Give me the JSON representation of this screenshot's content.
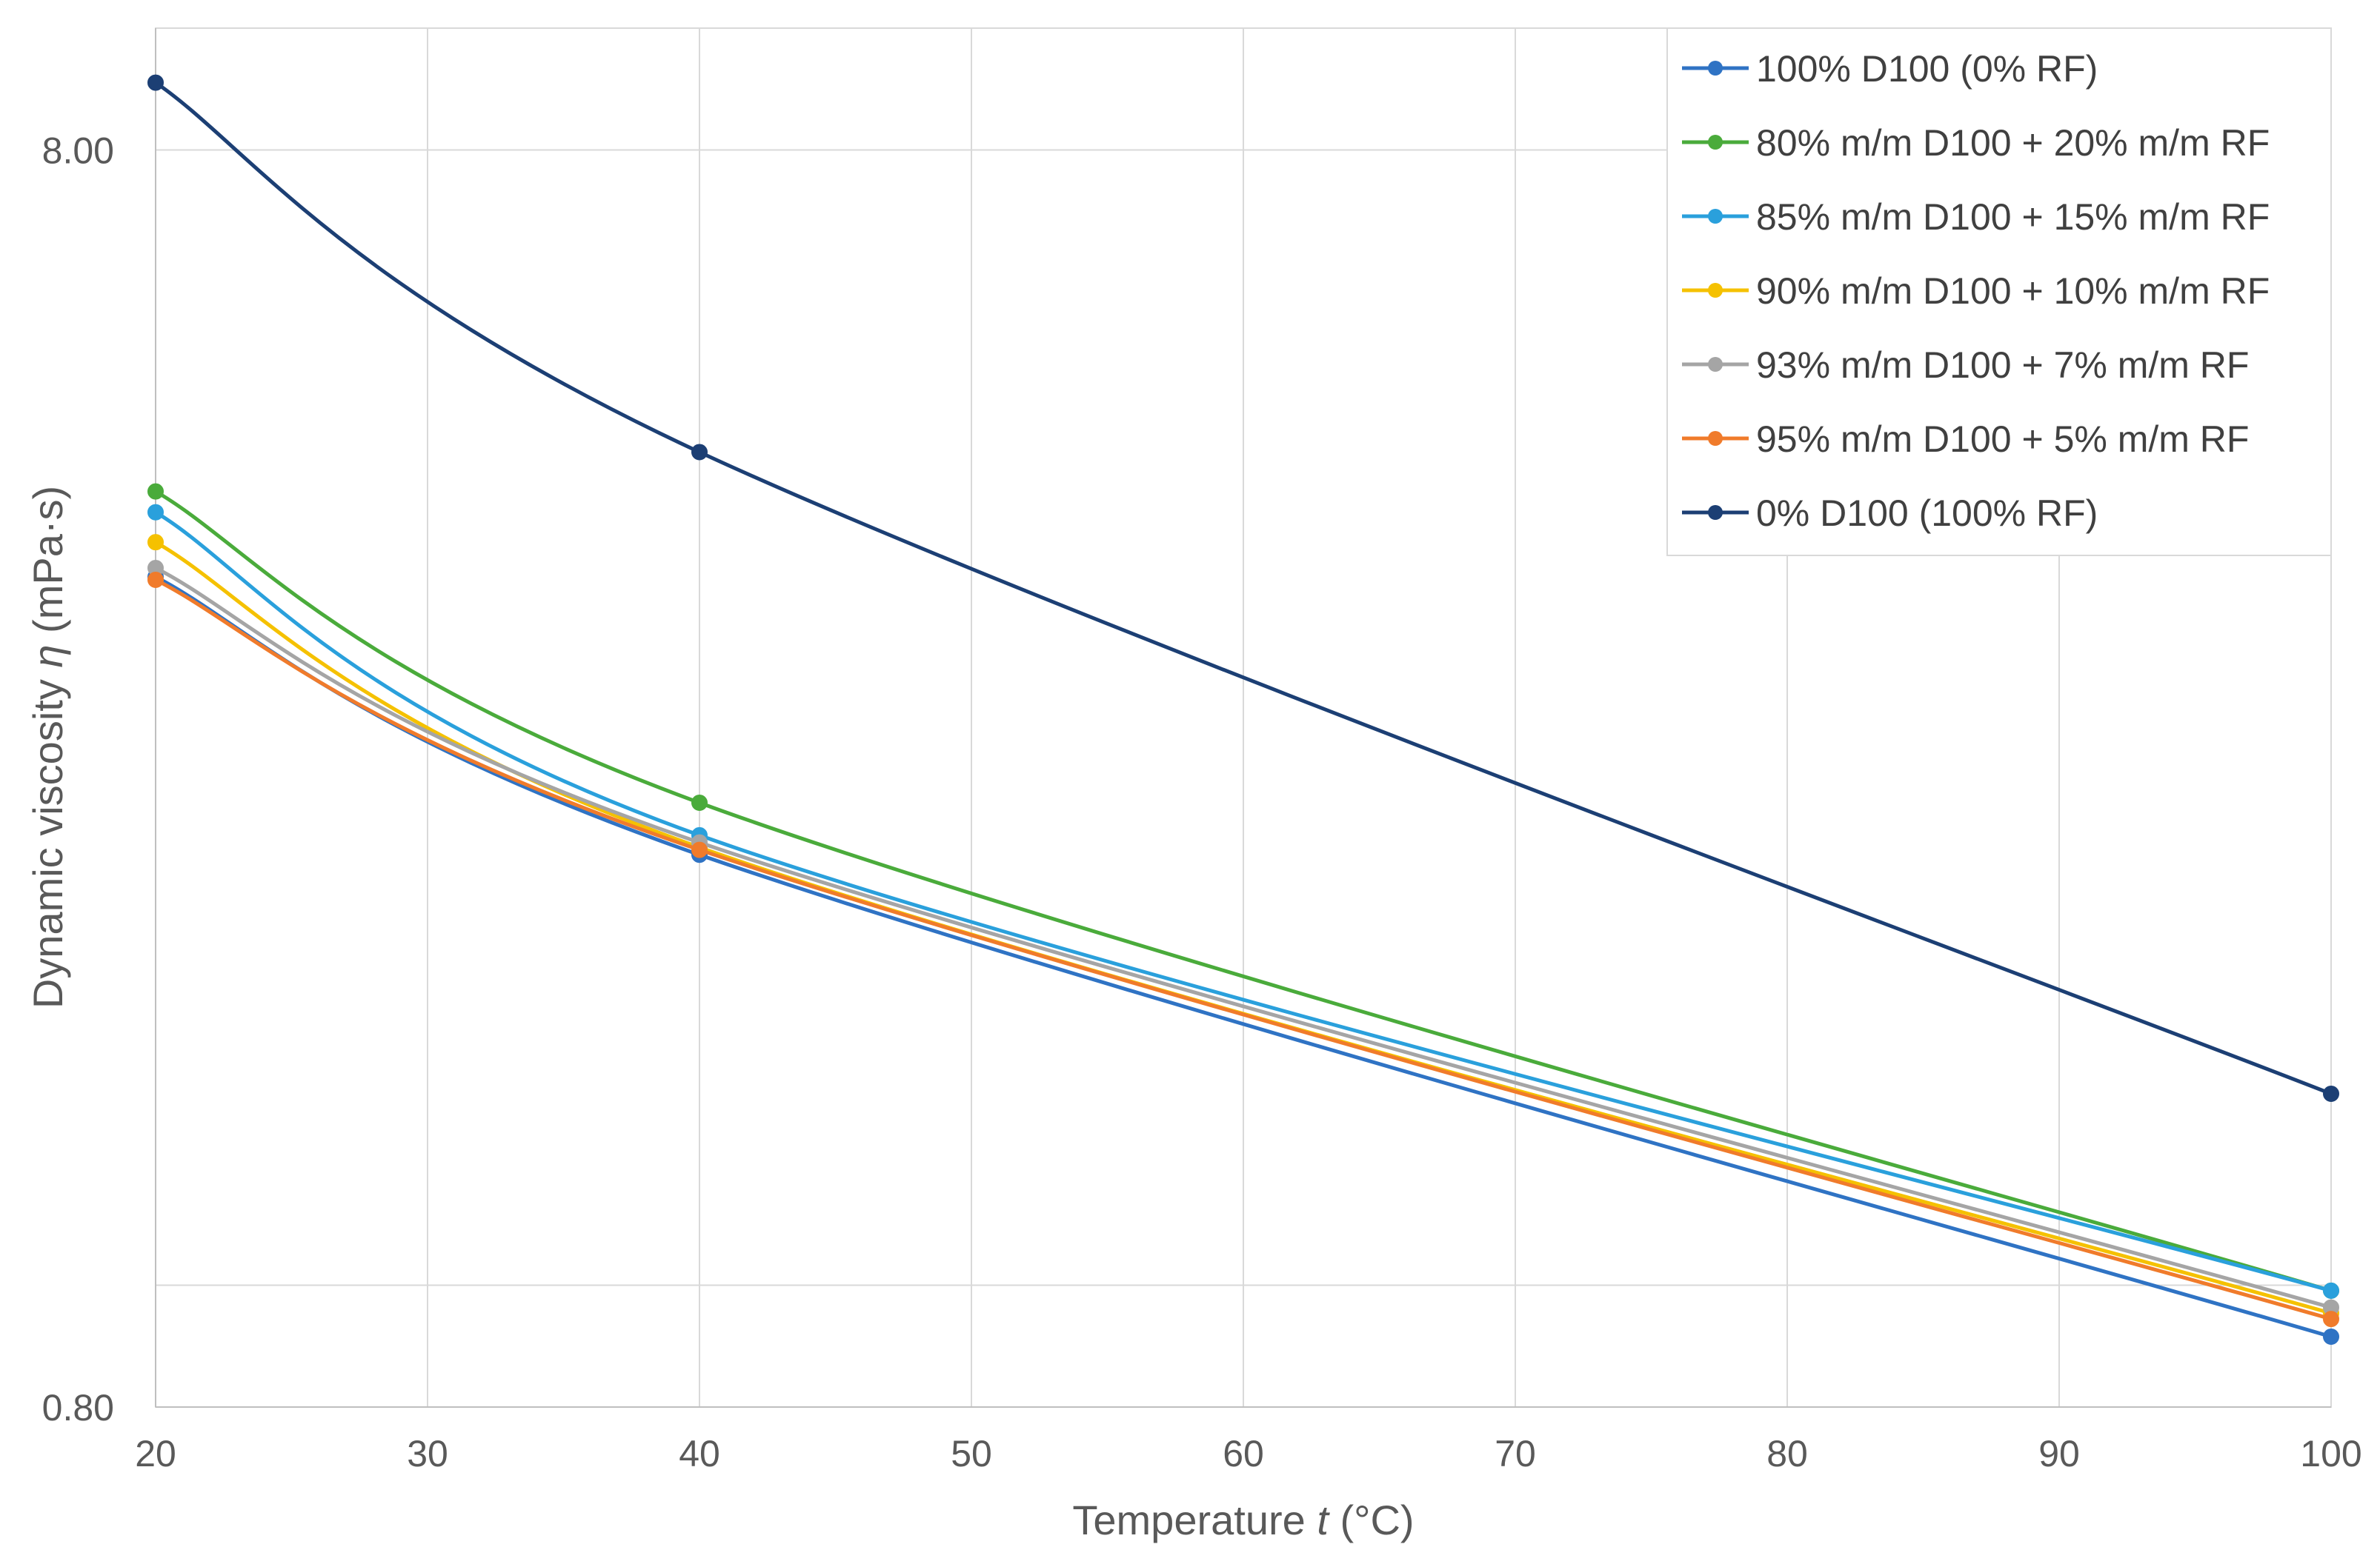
{
  "chart_data": {
    "type": "line",
    "title": "",
    "xlabel_text": "Temperature",
    "xlabel_var": "t",
    "xlabel_unit": "(°C)",
    "ylabel_text": "Dynamic viscosity",
    "ylabel_var": "η",
    "ylabel_unit": "(mPa·s)",
    "yscale": "log",
    "xlim": [
      20,
      100
    ],
    "ylim": [
      0.8,
      10
    ],
    "x_ticks": [
      20,
      30,
      40,
      50,
      60,
      70,
      80,
      90,
      100
    ],
    "x_tick_labels": [
      "20",
      "30",
      "40",
      "50",
      "60",
      "70",
      "80",
      "90",
      "100"
    ],
    "y_ticks": [
      0.8,
      8.0
    ],
    "y_tick_labels": [
      "0.80",
      "8.00"
    ],
    "y_gridlines": [
      1.0,
      8.0
    ],
    "grid": true,
    "legend_position": "top-right",
    "x": [
      20,
      40,
      100
    ],
    "series": [
      {
        "name": "100% D100 (0% RF)",
        "color": "#2f73c4",
        "values": [
          3.66,
          2.2,
          0.91
        ]
      },
      {
        "name": "80% m/m D100 + 20% m/m RF",
        "color": "#4aab3b",
        "values": [
          4.28,
          2.42,
          0.99
        ]
      },
      {
        "name": "85% m/m D100 + 15% m/m RF",
        "color": "#2aa0dc",
        "values": [
          4.12,
          2.28,
          0.99
        ]
      },
      {
        "name": "90% m/m D100 + 10% m/m RF",
        "color": "#f5c100",
        "values": [
          3.9,
          2.23,
          0.95
        ]
      },
      {
        "name": "93% m/m D100 + 7% m/m RF",
        "color": "#a5a5a5",
        "values": [
          3.72,
          2.25,
          0.96
        ]
      },
      {
        "name": "95% m/m D100 + 5% m/m RF",
        "color": "#f07b2b",
        "values": [
          3.64,
          2.22,
          0.94
        ]
      },
      {
        "name": "0% D100 (100% RF)",
        "color": "#1c3f74",
        "values": [
          9.05,
          4.6,
          1.42
        ]
      }
    ]
  }
}
